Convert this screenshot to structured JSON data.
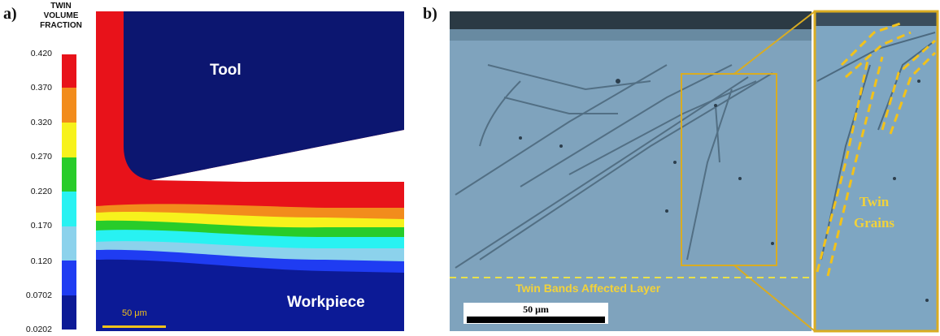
{
  "panel_a": {
    "label": "a)",
    "legend": {
      "title_lines": [
        "TWIN",
        "VOLUME",
        "FRACTION"
      ],
      "ticks": [
        "0.420",
        "0.370",
        "0.320",
        "0.270",
        "0.220",
        "0.170",
        "0.120",
        "0.0702",
        "0.0202"
      ],
      "colors": [
        "#e8121a",
        "#f28c1c",
        "#f7f21c",
        "#28cc2a",
        "#28f2f2",
        "#8cd2ec",
        "#1f3cf2",
        "#0c1a96"
      ]
    },
    "tool_label": "Tool",
    "workpiece_label": "Workpiece",
    "scale_label": "50 μm"
  },
  "panel_b": {
    "label": "b)",
    "bands_label": "Twin Bands Affected Layer",
    "scale_label": "50 μm",
    "inset_label_lines": [
      "Twin",
      "Grains"
    ]
  }
}
